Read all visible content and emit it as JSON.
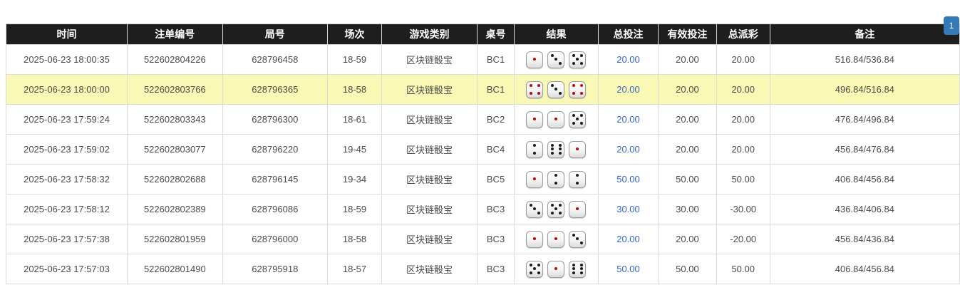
{
  "pagination": {
    "current_page": "1",
    "button_color": "#337ab7"
  },
  "colors": {
    "header_bg": "#1e1e1e",
    "header_text": "#ffffff",
    "highlight_row": "#f9f9b5",
    "total_bet_link": "#3366cc",
    "negative_amount": "#e03c3c",
    "dice_red_dot": "#b30d0d",
    "dice_black_dot": "#1c1c1c"
  },
  "table": {
    "columns": [
      {
        "key": "time",
        "label": "时间"
      },
      {
        "key": "bet_id",
        "label": "注单编号"
      },
      {
        "key": "round_id",
        "label": "局号"
      },
      {
        "key": "session",
        "label": "场次"
      },
      {
        "key": "game_type",
        "label": "游戏类别"
      },
      {
        "key": "table_no",
        "label": "桌号"
      },
      {
        "key": "result",
        "label": "结果"
      },
      {
        "key": "total_bet",
        "label": "总投注"
      },
      {
        "key": "valid_bet",
        "label": "有效投注"
      },
      {
        "key": "total_payout",
        "label": "总派彩"
      },
      {
        "key": "remark",
        "label": "备注"
      }
    ],
    "rows": [
      {
        "time": "2025-06-23 18:00:35",
        "bet_id": "522602804226",
        "round_id": "628796458",
        "session": "18-59",
        "game_type": "区块链骰宝",
        "table_no": "BC1",
        "dice": [
          1,
          3,
          5
        ],
        "total_bet": "20.00",
        "valid_bet": "20.00",
        "total_payout": "20.00",
        "remark": "516.84/536.84",
        "highlighted": false
      },
      {
        "time": "2025-06-23 18:00:00",
        "bet_id": "522602803766",
        "round_id": "628796365",
        "session": "18-58",
        "game_type": "区块链骰宝",
        "table_no": "BC1",
        "dice": [
          4,
          3,
          4
        ],
        "total_bet": "20.00",
        "valid_bet": "20.00",
        "total_payout": "20.00",
        "remark": "496.84/516.84",
        "highlighted": true
      },
      {
        "time": "2025-06-23 17:59:24",
        "bet_id": "522602803343",
        "round_id": "628796300",
        "session": "18-61",
        "game_type": "区块链骰宝",
        "table_no": "BC2",
        "dice": [
          1,
          1,
          5
        ],
        "total_bet": "20.00",
        "valid_bet": "20.00",
        "total_payout": "20.00",
        "remark": "476.84/496.84",
        "highlighted": false
      },
      {
        "time": "2025-06-23 17:59:02",
        "bet_id": "522602803077",
        "round_id": "628796220",
        "session": "19-45",
        "game_type": "区块链骰宝",
        "table_no": "BC4",
        "dice": [
          2,
          6,
          1
        ],
        "total_bet": "20.00",
        "valid_bet": "20.00",
        "total_payout": "20.00",
        "remark": "456.84/476.84",
        "highlighted": false
      },
      {
        "time": "2025-06-23 17:58:32",
        "bet_id": "522602802688",
        "round_id": "628796145",
        "session": "19-34",
        "game_type": "区块链骰宝",
        "table_no": "BC5",
        "dice": [
          1,
          2,
          2
        ],
        "total_bet": "50.00",
        "valid_bet": "50.00",
        "total_payout": "50.00",
        "remark": "406.84/456.84",
        "highlighted": false
      },
      {
        "time": "2025-06-23 17:58:12",
        "bet_id": "522602802389",
        "round_id": "628796086",
        "session": "18-59",
        "game_type": "区块链骰宝",
        "table_no": "BC3",
        "dice": [
          3,
          5,
          1
        ],
        "total_bet": "30.00",
        "valid_bet": "30.00",
        "total_payout": "-30.00",
        "remark": "436.84/406.84",
        "highlighted": false
      },
      {
        "time": "2025-06-23 17:57:38",
        "bet_id": "522602801959",
        "round_id": "628796000",
        "session": "18-58",
        "game_type": "区块链骰宝",
        "table_no": "BC3",
        "dice": [
          1,
          1,
          3
        ],
        "total_bet": "20.00",
        "valid_bet": "20.00",
        "total_payout": "-20.00",
        "remark": "456.84/436.84",
        "highlighted": false
      },
      {
        "time": "2025-06-23 17:57:03",
        "bet_id": "522602801490",
        "round_id": "628795918",
        "session": "18-57",
        "game_type": "区块链骰宝",
        "table_no": "BC3",
        "dice": [
          5,
          1,
          6
        ],
        "total_bet": "50.00",
        "valid_bet": "50.00",
        "total_payout": "50.00",
        "remark": "406.84/456.84",
        "highlighted": false
      }
    ]
  }
}
